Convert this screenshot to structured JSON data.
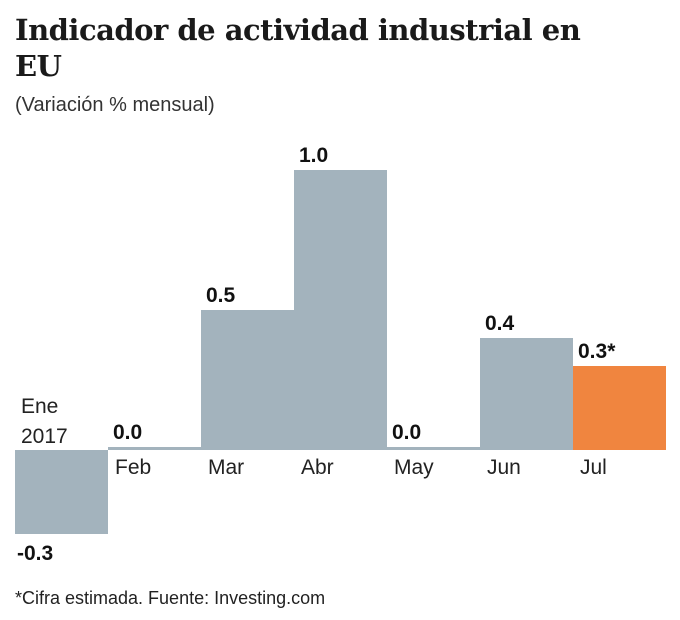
{
  "title": "Indicador de actividad industrial en EU",
  "subtitle": "(Variación % mensual)",
  "note": "*Cifra estimada. Fuente: Investing.com",
  "chart_data": {
    "type": "bar",
    "title": "Indicador de actividad industrial en EU",
    "subtitle": "(Variación % mensual)",
    "categories": [
      "Ene 2017",
      "Feb",
      "Mar",
      "Abr",
      "May",
      "Jun",
      "Jul"
    ],
    "values": [
      -0.3,
      0.0,
      0.5,
      1.0,
      0.0,
      0.4,
      0.3
    ],
    "value_labels": [
      "-0.3",
      "0.0",
      "0.5",
      "1.0",
      "0.0",
      "0.4",
      "0.3*"
    ],
    "colors": [
      "#a3b3bd",
      "#a3b3bd",
      "#a3b3bd",
      "#a3b3bd",
      "#a3b3bd",
      "#a3b3bd",
      "#f0853f"
    ],
    "highlight_color": "#f0853f",
    "bar_color": "#a3b3bd",
    "grid": false,
    "ylim": [
      -0.3,
      1.0
    ]
  }
}
